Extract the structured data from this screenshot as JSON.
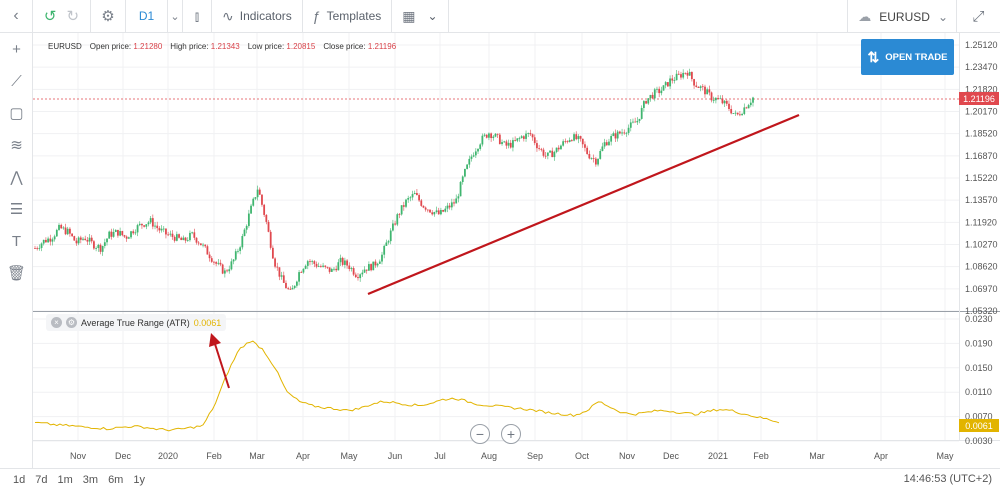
{
  "toolbar": {
    "timeframe": "D1",
    "indicators_label": "Indicators",
    "templates_label": "Templates",
    "symbol": "EURUSD"
  },
  "ohlc": {
    "symbol": "EURUSD",
    "open_label": "Open price:",
    "open": "1.21280",
    "high_label": "High price:",
    "high": "1.21343",
    "low_label": "Low price:",
    "low": "1.20815",
    "close_label": "Close price:",
    "close": "1.21196"
  },
  "open_trade_label": "OPEN TRADE",
  "current_price": "1.21196",
  "price_axis": [
    "1.25120",
    "1.23470",
    "1.21820",
    "1.20170",
    "1.18520",
    "1.16870",
    "1.15220",
    "1.13570",
    "1.11920",
    "1.10270",
    "1.08620",
    "1.06970",
    "1.05320"
  ],
  "atr": {
    "label": "Average True Range (ATR)",
    "value": "0.0061",
    "axis": [
      "0.0230",
      "0.0190",
      "0.0150",
      "0.0110",
      "0.0070",
      "0.0030"
    ]
  },
  "time_axis": [
    "Nov",
    "Dec",
    "2020",
    "Feb",
    "Mar",
    "Apr",
    "May",
    "Jun",
    "Jul",
    "Aug",
    "Sep",
    "Oct",
    "Nov",
    "Dec",
    "2021",
    "Feb",
    "Mar",
    "Apr",
    "May"
  ],
  "timeframes": [
    "1d",
    "7d",
    "1m",
    "3m",
    "6m",
    "1y"
  ],
  "clock": "14:46:53 (UTC+2)",
  "colors": {
    "up": "#3fb56f",
    "down": "#e0484e",
    "atr": "#e2b400",
    "trend": "#c0161c",
    "accent": "#2b8ad4"
  },
  "chart_data": {
    "type": "candlestick",
    "title": "",
    "price_ylim": [
      1.0532,
      1.2512
    ],
    "atr_ylim": [
      0.003,
      0.023
    ],
    "close_series_approx": [
      1.1,
      1.105,
      1.108,
      1.115,
      1.112,
      1.104,
      1.108,
      1.103,
      1.1,
      1.11,
      1.112,
      1.108,
      1.114,
      1.118,
      1.12,
      1.114,
      1.11,
      1.108,
      1.105,
      1.11,
      1.104,
      1.096,
      1.088,
      1.082,
      1.09,
      1.105,
      1.126,
      1.145,
      1.12,
      1.09,
      1.075,
      1.066,
      1.082,
      1.091,
      1.088,
      1.085,
      1.083,
      1.09,
      1.087,
      1.08,
      1.085,
      1.087,
      1.094,
      1.11,
      1.125,
      1.135,
      1.14,
      1.132,
      1.128,
      1.125,
      1.13,
      1.135,
      1.155,
      1.17,
      1.18,
      1.186,
      1.182,
      1.176,
      1.178,
      1.183,
      1.185,
      1.175,
      1.168,
      1.172,
      1.178,
      1.183,
      1.18,
      1.17,
      1.165,
      1.178,
      1.183,
      1.186,
      1.19,
      1.195,
      1.21,
      1.215,
      1.218,
      1.225,
      1.228,
      1.232,
      1.222,
      1.218,
      1.212,
      1.21,
      1.205,
      1.198,
      1.205,
      1.212
    ],
    "atr_series_approx": [
      0.006,
      0.0058,
      0.0056,
      0.0055,
      0.0053,
      0.0052,
      0.005,
      0.0052,
      0.0054,
      0.0053,
      0.005,
      0.0048,
      0.0049,
      0.0052,
      0.0055,
      0.009,
      0.014,
      0.018,
      0.0195,
      0.018,
      0.015,
      0.011,
      0.0095,
      0.0088,
      0.0085,
      0.0083,
      0.008,
      0.0083,
      0.009,
      0.0095,
      0.0093,
      0.009,
      0.0088,
      0.0092,
      0.0098,
      0.01,
      0.0095,
      0.009,
      0.0088,
      0.0086,
      0.0084,
      0.0082,
      0.0079,
      0.0076,
      0.0074,
      0.0072,
      0.008,
      0.0095,
      0.0085,
      0.0076,
      0.0074,
      0.0077,
      0.008,
      0.0079,
      0.0076,
      0.0074,
      0.0078,
      0.0082,
      0.008,
      0.0075,
      0.007,
      0.0066,
      0.0061
    ]
  }
}
